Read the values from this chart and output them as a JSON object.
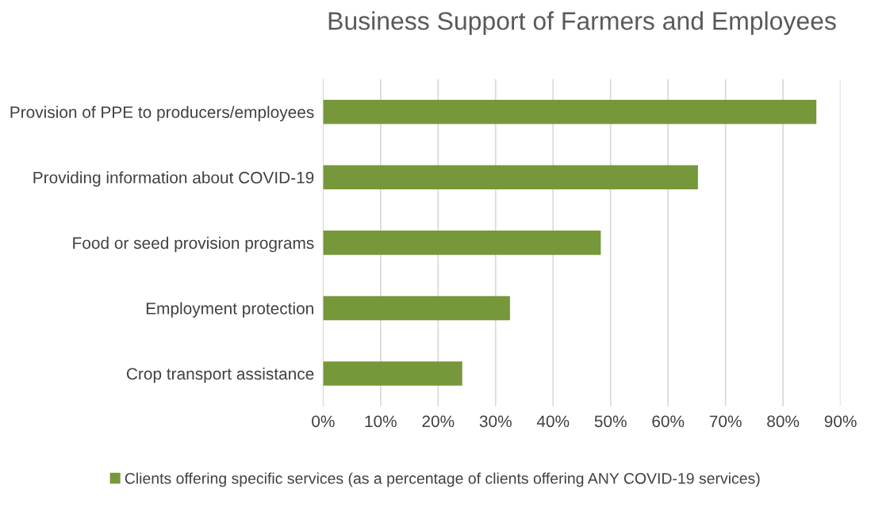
{
  "chart_data": {
    "type": "bar",
    "orientation": "horizontal",
    "title": "Business Support of Farmers and Employees",
    "categories": [
      "Provision of PPE to producers/employees",
      "Providing information about COVID-19",
      "Food or seed provision programs",
      "Employment protection",
      "Crop transport assistance"
    ],
    "series": [
      {
        "name": "Clients offering specific services (as a percentage of clients offering ANY COVID-19 services)",
        "color": "#76983a",
        "values": [
          85.8,
          65.2,
          48.3,
          32.5,
          24.2
        ]
      }
    ],
    "xlim": [
      0,
      90
    ],
    "xticks": [
      {
        "value": 0,
        "label": "0%"
      },
      {
        "value": 10,
        "label": "10%"
      },
      {
        "value": 20,
        "label": "20%"
      },
      {
        "value": 30,
        "label": "30%"
      },
      {
        "value": 40,
        "label": "40%"
      },
      {
        "value": 50,
        "label": "50%"
      },
      {
        "value": 60,
        "label": "60%"
      },
      {
        "value": 70,
        "label": "70%"
      },
      {
        "value": 80,
        "label": "80%"
      },
      {
        "value": 90,
        "label": "90%"
      }
    ],
    "grid": "x",
    "legend": "bottom"
  }
}
